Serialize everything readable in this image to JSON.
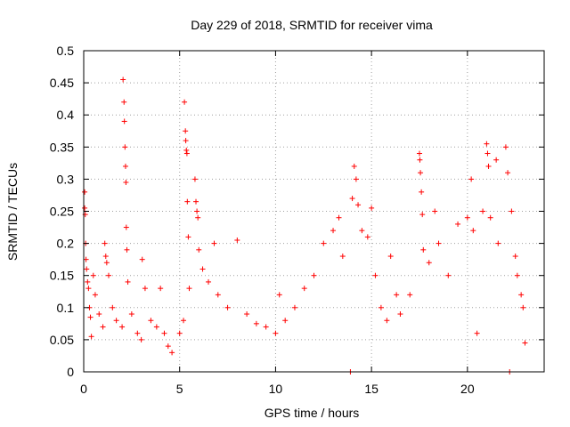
{
  "chart_data": {
    "type": "scatter",
    "title": "Day 229 of 2018, SRMTID for receiver vima",
    "xlabel": "GPS time / hours",
    "ylabel": "SRMTID / TECUs",
    "xlim": [
      0,
      24
    ],
    "ylim": [
      0,
      0.5
    ],
    "x_ticks": [
      0,
      5,
      10,
      15,
      20
    ],
    "x_tick_labels": [
      "0",
      "5",
      "10",
      "15",
      "20"
    ],
    "y_ticks": [
      0,
      0.05,
      0.1,
      0.15,
      0.2,
      0.25,
      0.3,
      0.35,
      0.4,
      0.45,
      0.5
    ],
    "y_tick_labels": [
      "0",
      "0.05",
      "0.1",
      "0.15",
      "0.2",
      "0.25",
      "0.3",
      "0.35",
      "0.4",
      "0.45",
      "0.5"
    ],
    "grid": true,
    "marker": "+",
    "color": "#ff0000",
    "series": [
      {
        "name": "SRMTID",
        "points": [
          [
            0.05,
            0.28
          ],
          [
            0.05,
            0.255
          ],
          [
            0.08,
            0.245
          ],
          [
            0.1,
            0.2
          ],
          [
            0.12,
            0.175
          ],
          [
            0.15,
            0.16
          ],
          [
            0.2,
            0.14
          ],
          [
            0.25,
            0.13
          ],
          [
            0.3,
            0.1
          ],
          [
            0.35,
            0.085
          ],
          [
            0.4,
            0.055
          ],
          [
            0.5,
            0.15
          ],
          [
            0.6,
            0.12
          ],
          [
            0.8,
            0.09
          ],
          [
            1.0,
            0.07
          ],
          [
            1.1,
            0.2
          ],
          [
            1.15,
            0.18
          ],
          [
            1.2,
            0.17
          ],
          [
            1.3,
            0.15
          ],
          [
            1.5,
            0.1
          ],
          [
            1.7,
            0.08
          ],
          [
            2.0,
            0.07
          ],
          [
            2.05,
            0.455
          ],
          [
            2.1,
            0.42
          ],
          [
            2.12,
            0.39
          ],
          [
            2.15,
            0.35
          ],
          [
            2.18,
            0.32
          ],
          [
            2.2,
            0.295
          ],
          [
            2.22,
            0.225
          ],
          [
            2.25,
            0.19
          ],
          [
            2.3,
            0.14
          ],
          [
            2.5,
            0.09
          ],
          [
            2.8,
            0.06
          ],
          [
            3.0,
            0.05
          ],
          [
            3.05,
            0.175
          ],
          [
            3.2,
            0.13
          ],
          [
            3.5,
            0.08
          ],
          [
            3.8,
            0.07
          ],
          [
            4.0,
            0.13
          ],
          [
            4.2,
            0.06
          ],
          [
            4.4,
            0.04
          ],
          [
            4.6,
            0.03
          ],
          [
            5.0,
            0.06
          ],
          [
            5.2,
            0.08
          ],
          [
            5.25,
            0.42
          ],
          [
            5.3,
            0.375
          ],
          [
            5.32,
            0.36
          ],
          [
            5.35,
            0.345
          ],
          [
            5.38,
            0.34
          ],
          [
            5.4,
            0.265
          ],
          [
            5.45,
            0.21
          ],
          [
            5.5,
            0.13
          ],
          [
            5.8,
            0.3
          ],
          [
            5.85,
            0.265
          ],
          [
            5.9,
            0.25
          ],
          [
            5.95,
            0.24
          ],
          [
            6.0,
            0.19
          ],
          [
            6.2,
            0.16
          ],
          [
            6.5,
            0.14
          ],
          [
            6.8,
            0.2
          ],
          [
            7.0,
            0.12
          ],
          [
            7.5,
            0.1
          ],
          [
            8.0,
            0.205
          ],
          [
            8.5,
            0.09
          ],
          [
            9.0,
            0.075
          ],
          [
            9.5,
            0.07
          ],
          [
            10.0,
            0.06
          ],
          [
            10.2,
            0.12
          ],
          [
            10.5,
            0.08
          ],
          [
            11.0,
            0.1
          ],
          [
            11.5,
            0.13
          ],
          [
            12.0,
            0.15
          ],
          [
            12.5,
            0.2
          ],
          [
            13.0,
            0.22
          ],
          [
            13.3,
            0.24
          ],
          [
            13.5,
            0.18
          ],
          [
            13.9,
            0.0
          ],
          [
            14.0,
            0.27
          ],
          [
            14.1,
            0.32
          ],
          [
            14.2,
            0.3
          ],
          [
            14.3,
            0.26
          ],
          [
            14.5,
            0.22
          ],
          [
            14.8,
            0.21
          ],
          [
            15.0,
            0.255
          ],
          [
            15.2,
            0.15
          ],
          [
            15.5,
            0.1
          ],
          [
            15.8,
            0.08
          ],
          [
            16.0,
            0.18
          ],
          [
            16.3,
            0.12
          ],
          [
            16.5,
            0.09
          ],
          [
            17.0,
            0.12
          ],
          [
            17.5,
            0.34
          ],
          [
            17.52,
            0.33
          ],
          [
            17.55,
            0.31
          ],
          [
            17.6,
            0.28
          ],
          [
            17.65,
            0.245
          ],
          [
            17.7,
            0.19
          ],
          [
            18.0,
            0.17
          ],
          [
            18.3,
            0.25
          ],
          [
            18.5,
            0.2
          ],
          [
            19.0,
            0.15
          ],
          [
            19.5,
            0.23
          ],
          [
            20.0,
            0.24
          ],
          [
            20.2,
            0.3
          ],
          [
            20.3,
            0.22
          ],
          [
            20.5,
            0.06
          ],
          [
            20.8,
            0.25
          ],
          [
            21.0,
            0.355
          ],
          [
            21.05,
            0.34
          ],
          [
            21.1,
            0.32
          ],
          [
            21.2,
            0.24
          ],
          [
            21.5,
            0.33
          ],
          [
            21.6,
            0.2
          ],
          [
            22.0,
            0.35
          ],
          [
            22.1,
            0.31
          ],
          [
            22.2,
            0.0
          ],
          [
            22.3,
            0.25
          ],
          [
            22.5,
            0.18
          ],
          [
            22.6,
            0.15
          ],
          [
            22.8,
            0.12
          ],
          [
            22.9,
            0.1
          ],
          [
            23.0,
            0.045
          ]
        ]
      }
    ]
  }
}
